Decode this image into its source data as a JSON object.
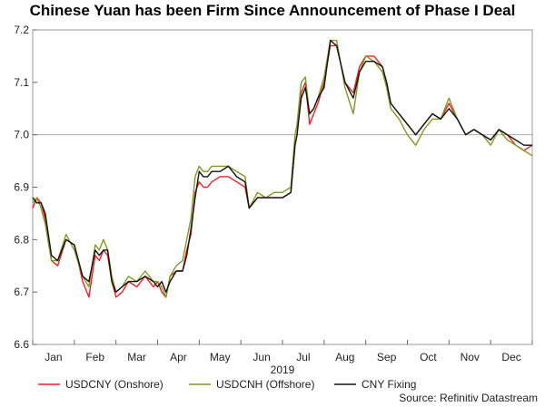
{
  "chart_data": {
    "type": "line",
    "title": "Chinese Yuan has been Firm Since Announcement of Phase I Deal",
    "xlabel": "2019",
    "ylabel": "",
    "ylim": [
      6.6,
      7.2
    ],
    "xlim": [
      0,
      12
    ],
    "x_ticks": [
      "Jan",
      "Feb",
      "Mar",
      "Apr",
      "May",
      "Jun",
      "Jul",
      "Aug",
      "Sep",
      "Oct",
      "Nov",
      "Dec"
    ],
    "y_ticks": [
      6.6,
      6.7,
      6.8,
      6.9,
      7.0,
      7.1,
      7.2
    ],
    "y_tick_labels": [
      "6.6",
      "6.7",
      "6.8",
      "6.9",
      "7.0",
      "7.1",
      "7.2"
    ],
    "reference_line": {
      "y": 7.0,
      "color": "#aaaaaa"
    },
    "grid": false,
    "legend_position": "bottom",
    "source": "Source: Refinitiv Datastream",
    "series": [
      {
        "name": "USDCNY (Onshore)",
        "color": "#e8242a",
        "x": [
          0,
          0.1,
          0.2,
          0.3,
          0.45,
          0.6,
          0.8,
          1.0,
          1.2,
          1.35,
          1.5,
          1.6,
          1.7,
          1.8,
          1.9,
          2.0,
          2.15,
          2.3,
          2.5,
          2.7,
          2.9,
          3.0,
          3.1,
          3.2,
          3.3,
          3.45,
          3.6,
          3.7,
          3.8,
          3.9,
          4.0,
          4.1,
          4.2,
          4.3,
          4.5,
          4.7,
          4.9,
          5.1,
          5.2,
          5.4,
          5.6,
          5.8,
          6.0,
          6.2,
          6.3,
          6.35,
          6.45,
          6.55,
          6.65,
          6.75,
          6.85,
          7.0,
          7.15,
          7.3,
          7.5,
          7.7,
          7.85,
          8.0,
          8.2,
          8.4,
          8.5,
          8.6,
          8.8,
          9.0,
          9.2,
          9.4,
          9.6,
          9.8,
          10.0,
          10.2,
          10.4,
          10.6,
          10.8,
          11.0,
          11.2,
          11.4,
          11.6,
          11.8,
          12.0
        ],
        "y": [
          6.86,
          6.88,
          6.87,
          6.84,
          6.76,
          6.75,
          6.8,
          6.79,
          6.72,
          6.69,
          6.77,
          6.76,
          6.78,
          6.77,
          6.72,
          6.69,
          6.7,
          6.72,
          6.71,
          6.73,
          6.71,
          6.72,
          6.7,
          6.69,
          6.73,
          6.74,
          6.74,
          6.78,
          6.81,
          6.89,
          6.91,
          6.9,
          6.9,
          6.91,
          6.92,
          6.92,
          6.91,
          6.9,
          6.86,
          6.88,
          6.88,
          6.88,
          6.88,
          6.89,
          6.98,
          7.0,
          7.08,
          7.1,
          7.02,
          7.04,
          7.06,
          7.1,
          7.17,
          7.17,
          7.1,
          7.08,
          7.13,
          7.15,
          7.15,
          7.13,
          7.1,
          7.06,
          7.04,
          7.02,
          7.0,
          7.02,
          7.04,
          7.03,
          7.06,
          7.03,
          7.0,
          7.01,
          7.0,
          6.99,
          7.01,
          7.0,
          6.98,
          6.97,
          6.98
        ]
      },
      {
        "name": "USDCNH (Offshore)",
        "color": "#7f9a25",
        "x": [
          0,
          0.1,
          0.2,
          0.3,
          0.45,
          0.6,
          0.8,
          1.0,
          1.2,
          1.35,
          1.5,
          1.6,
          1.7,
          1.8,
          1.9,
          2.0,
          2.15,
          2.3,
          2.5,
          2.7,
          2.9,
          3.0,
          3.1,
          3.2,
          3.3,
          3.45,
          3.6,
          3.7,
          3.8,
          3.9,
          4.0,
          4.1,
          4.2,
          4.3,
          4.5,
          4.7,
          4.9,
          5.1,
          5.2,
          5.4,
          5.6,
          5.8,
          6.0,
          6.2,
          6.3,
          6.35,
          6.45,
          6.55,
          6.65,
          6.75,
          6.85,
          7.0,
          7.15,
          7.3,
          7.5,
          7.7,
          7.85,
          8.0,
          8.2,
          8.4,
          8.5,
          8.6,
          8.8,
          9.0,
          9.2,
          9.4,
          9.6,
          9.8,
          10.0,
          10.2,
          10.4,
          10.6,
          10.8,
          11.0,
          11.2,
          11.4,
          11.6,
          11.8,
          12.0
        ],
        "y": [
          6.87,
          6.88,
          6.86,
          6.83,
          6.76,
          6.76,
          6.81,
          6.78,
          6.73,
          6.71,
          6.79,
          6.78,
          6.8,
          6.78,
          6.73,
          6.7,
          6.71,
          6.73,
          6.72,
          6.74,
          6.72,
          6.72,
          6.71,
          6.69,
          6.73,
          6.75,
          6.76,
          6.8,
          6.84,
          6.92,
          6.94,
          6.93,
          6.93,
          6.94,
          6.94,
          6.94,
          6.93,
          6.92,
          6.86,
          6.89,
          6.88,
          6.89,
          6.89,
          6.9,
          7.0,
          7.02,
          7.1,
          7.11,
          7.04,
          7.05,
          7.07,
          7.11,
          7.18,
          7.18,
          7.09,
          7.04,
          7.12,
          7.15,
          7.14,
          7.12,
          7.09,
          7.05,
          7.03,
          7.0,
          6.98,
          7.01,
          7.03,
          7.03,
          7.07,
          7.03,
          7.0,
          7.01,
          7.0,
          6.98,
          7.01,
          6.99,
          6.98,
          6.97,
          6.96
        ]
      },
      {
        "name": "CNY Fixing",
        "color": "#111111",
        "x": [
          0,
          0.1,
          0.2,
          0.3,
          0.45,
          0.6,
          0.8,
          1.0,
          1.2,
          1.35,
          1.5,
          1.6,
          1.7,
          1.8,
          1.9,
          2.0,
          2.15,
          2.3,
          2.5,
          2.7,
          2.9,
          3.0,
          3.1,
          3.2,
          3.3,
          3.45,
          3.6,
          3.7,
          3.8,
          3.9,
          4.0,
          4.1,
          4.2,
          4.3,
          4.5,
          4.7,
          4.9,
          5.1,
          5.2,
          5.4,
          5.6,
          5.8,
          6.0,
          6.2,
          6.3,
          6.35,
          6.45,
          6.55,
          6.65,
          6.75,
          6.85,
          7.0,
          7.15,
          7.3,
          7.5,
          7.7,
          7.85,
          8.0,
          8.2,
          8.4,
          8.5,
          8.6,
          8.8,
          9.0,
          9.2,
          9.4,
          9.6,
          9.8,
          10.0,
          10.2,
          10.4,
          10.6,
          10.8,
          11.0,
          11.2,
          11.4,
          11.6,
          11.8,
          12.0
        ],
        "y": [
          6.88,
          6.87,
          6.87,
          6.85,
          6.77,
          6.76,
          6.8,
          6.79,
          6.73,
          6.72,
          6.78,
          6.77,
          6.78,
          6.78,
          6.72,
          6.7,
          6.71,
          6.72,
          6.72,
          6.73,
          6.72,
          6.71,
          6.72,
          6.7,
          6.72,
          6.74,
          6.74,
          6.77,
          6.82,
          6.88,
          6.93,
          6.92,
          6.92,
          6.93,
          6.93,
          6.94,
          6.92,
          6.91,
          6.86,
          6.88,
          6.88,
          6.88,
          6.88,
          6.89,
          6.98,
          7.0,
          7.07,
          7.09,
          7.04,
          7.05,
          7.07,
          7.09,
          7.18,
          7.17,
          7.1,
          7.07,
          7.12,
          7.14,
          7.14,
          7.13,
          7.1,
          7.06,
          7.04,
          7.02,
          7.0,
          7.02,
          7.04,
          7.03,
          7.05,
          7.03,
          7.0,
          7.01,
          7.0,
          6.99,
          7.01,
          7.0,
          6.99,
          6.98,
          6.98
        ]
      }
    ]
  }
}
